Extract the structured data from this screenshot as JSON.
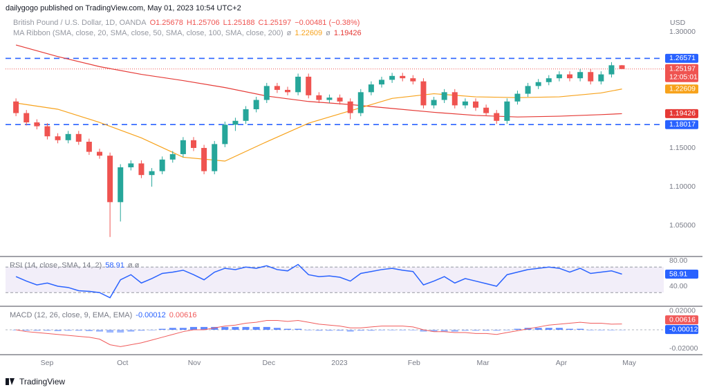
{
  "header": {
    "publisher": "dailygogo published on TradingView.com, May 01, 2023 10:54 UTC+2",
    "currency": "USD",
    "footer": "TradingView"
  },
  "chart_data": [
    {
      "type": "candlestick",
      "title": "British Pound / U.S. Dollar, 1D, OANDA",
      "legend": {
        "open": "O1.25678",
        "high": "H1.25706",
        "low": "L1.25188",
        "close": "C1.25197",
        "change": "−0.00481 (−0.38%)"
      },
      "ribbon": {
        "title": "MA Ribbon (SMA, close, 20, SMA, close, 50, SMA, close, 100, SMA, close, 200)",
        "sep": "ø"
      },
      "countdown": "12:05:01",
      "xlim": [
        -1,
        62
      ],
      "xticks": [
        {
          "value": 2.97,
          "label": "Sep"
        },
        {
          "value": 10.2,
          "label": "Oct"
        },
        {
          "value": 17.07,
          "label": "Nov"
        },
        {
          "value": 24.2,
          "label": "Dec"
        },
        {
          "value": 30.96,
          "label": "2023"
        },
        {
          "value": 38.1,
          "label": "Feb"
        },
        {
          "value": 44.7,
          "label": "Mar"
        },
        {
          "value": 52.2,
          "label": "Apr"
        },
        {
          "value": 58.7,
          "label": "May"
        }
      ],
      "ylim": [
        1.0107,
        1.3232
      ],
      "yticks": [
        {
          "value": 1.3,
          "label": "1.30000"
        },
        {
          "value": 1.15,
          "label": "1.15000"
        },
        {
          "value": 1.1,
          "label": "1.10000"
        },
        {
          "value": 1.05,
          "label": "1.05000"
        }
      ],
      "up_color": "#26a69a",
      "down_color": "#ef5350",
      "open": [
        1.21,
        1.195,
        1.183,
        1.178,
        1.165,
        1.16,
        1.168,
        1.158,
        1.145,
        1.14,
        1.08,
        1.125,
        1.13,
        1.115,
        1.12,
        1.135,
        1.142,
        1.16,
        1.15,
        1.12,
        1.155,
        1.18,
        1.185,
        1.2,
        1.212,
        1.23,
        1.225,
        1.222,
        1.242,
        1.218,
        1.212,
        1.215,
        1.21,
        1.195,
        1.222,
        1.232,
        1.238,
        1.243,
        1.24,
        1.236,
        1.205,
        1.212,
        1.222,
        1.205,
        1.21,
        1.202,
        1.195,
        1.185,
        1.21,
        1.22,
        1.23,
        1.235,
        1.24,
        1.245,
        1.24,
        1.248,
        1.236,
        1.245,
        1.25678
      ],
      "high": [
        1.214,
        1.199,
        1.187,
        1.182,
        1.169,
        1.172,
        1.172,
        1.162,
        1.149,
        1.144,
        1.129,
        1.134,
        1.134,
        1.124,
        1.139,
        1.146,
        1.164,
        1.164,
        1.154,
        1.159,
        1.184,
        1.189,
        1.204,
        1.216,
        1.234,
        1.234,
        1.229,
        1.246,
        1.246,
        1.222,
        1.219,
        1.219,
        1.214,
        1.226,
        1.236,
        1.242,
        1.247,
        1.247,
        1.244,
        1.24,
        1.216,
        1.226,
        1.226,
        1.214,
        1.214,
        1.206,
        1.199,
        1.214,
        1.224,
        1.234,
        1.239,
        1.244,
        1.249,
        1.249,
        1.252,
        1.252,
        1.249,
        1.2608,
        1.25706
      ],
      "low": [
        1.191,
        1.179,
        1.174,
        1.161,
        1.156,
        1.156,
        1.154,
        1.141,
        1.136,
        1.035,
        1.055,
        1.121,
        1.111,
        1.1,
        1.116,
        1.131,
        1.138,
        1.146,
        1.116,
        1.116,
        1.151,
        1.172,
        1.181,
        1.196,
        1.208,
        1.221,
        1.218,
        1.218,
        1.214,
        1.208,
        1.208,
        1.206,
        1.187,
        1.191,
        1.218,
        1.228,
        1.234,
        1.236,
        1.232,
        1.201,
        1.201,
        1.208,
        1.201,
        1.201,
        1.198,
        1.191,
        1.181,
        1.181,
        1.206,
        1.216,
        1.226,
        1.231,
        1.236,
        1.236,
        1.236,
        1.232,
        1.232,
        1.241,
        1.25188
      ],
      "close": [
        1.195,
        1.183,
        1.178,
        1.165,
        1.16,
        1.168,
        1.158,
        1.145,
        1.14,
        1.08,
        1.125,
        1.13,
        1.115,
        1.12,
        1.135,
        1.142,
        1.16,
        1.15,
        1.12,
        1.155,
        1.18,
        1.185,
        1.2,
        1.212,
        1.23,
        1.225,
        1.222,
        1.242,
        1.218,
        1.212,
        1.215,
        1.21,
        1.195,
        1.222,
        1.232,
        1.238,
        1.243,
        1.24,
        1.236,
        1.205,
        1.212,
        1.222,
        1.205,
        1.21,
        1.202,
        1.195,
        1.185,
        1.21,
        1.22,
        1.23,
        1.235,
        1.24,
        1.245,
        1.24,
        1.248,
        1.236,
        1.245,
        1.25678,
        1.25197
      ],
      "series": [
        {
          "name": "SMA 200",
          "color": "#e53935",
          "x": [
            0,
            4,
            8,
            12,
            16,
            20,
            24,
            28,
            32,
            36,
            40,
            44,
            48,
            52,
            56,
            58
          ],
          "values": [
            1.283,
            1.268,
            1.255,
            1.245,
            1.237,
            1.228,
            1.217,
            1.21,
            1.206,
            1.201,
            1.196,
            1.192,
            1.19,
            1.191,
            1.193,
            1.19426
          ]
        },
        {
          "name": "SMA 50",
          "color": "#f7a21b",
          "x": [
            0,
            4,
            8,
            12,
            16,
            20,
            24,
            28,
            32,
            36,
            40,
            44,
            48,
            52,
            56,
            58
          ],
          "values": [
            1.208,
            1.2,
            1.183,
            1.163,
            1.138,
            1.133,
            1.158,
            1.182,
            1.198,
            1.214,
            1.22,
            1.216,
            1.215,
            1.216,
            1.221,
            1.22609
          ]
        }
      ],
      "levels": [
        1.26571,
        1.18017
      ],
      "level_color": "#2962ff"
    },
    {
      "type": "line",
      "title": "RSI (14, close, SMA, 14, 2)",
      "suffix": "ø ø",
      "color": "#2962ff",
      "ylim": [
        9.7,
        85.4
      ],
      "yticks": [
        {
          "value": 80,
          "label": "80.00"
        },
        {
          "value": 40,
          "label": "40.00"
        }
      ],
      "bands": [
        70,
        30
      ],
      "values": [
        55,
        48,
        42,
        45,
        40,
        38,
        33,
        32,
        30,
        22,
        50,
        58,
        45,
        52,
        60,
        62,
        65,
        58,
        50,
        62,
        68,
        66,
        70,
        68,
        72,
        66,
        64,
        74,
        58,
        55,
        56,
        54,
        48,
        60,
        63,
        66,
        68,
        65,
        63,
        42,
        48,
        55,
        45,
        52,
        48,
        44,
        40,
        58,
        62,
        66,
        68,
        70,
        68,
        62,
        68,
        60,
        62,
        64,
        58.91
      ]
    },
    {
      "type": "macd",
      "title": "MACD (12, 26, close, 9, EMA, EMA)",
      "ylim": [
        -0.0259,
        0.0244
      ],
      "yticks": [
        {
          "value": 0.02,
          "label": "0.02000"
        },
        {
          "value": -0.02,
          "label": "-0.02000"
        }
      ],
      "series": [
        {
          "name": "Histogram",
          "color": "#2962ff",
          "values": [
            0,
            -0.001,
            -0.001,
            -0.001,
            -0.0015,
            -0.001,
            -0.001,
            -0.0015,
            -0.002,
            -0.003,
            -0.003,
            -0.002,
            -0.001,
            0,
            0.001,
            0.002,
            0.002,
            0.003,
            0.003,
            0.003,
            0.003,
            0.003,
            0.003,
            0.003,
            0.003,
            0.002,
            0.001,
            0.001,
            0,
            -0.001,
            -0.001,
            -0.001,
            -0.002,
            -0.001,
            -0.001,
            0,
            0,
            0,
            0,
            -0.002,
            -0.002,
            -0.002,
            -0.002,
            -0.001,
            -0.001,
            -0.001,
            -0.001,
            0,
            0.001,
            0.002,
            0.002,
            0.002,
            0.002,
            0.001,
            0.001,
            0,
            0,
            0,
            -0.00012
          ]
        },
        {
          "name": "MACD",
          "color": "#f05a5a",
          "values": [
            0,
            -0.002,
            -0.003,
            -0.004,
            -0.005,
            -0.006,
            -0.007,
            -0.008,
            -0.01,
            -0.016,
            -0.018,
            -0.016,
            -0.014,
            -0.011,
            -0.008,
            -0.005,
            -0.002,
            0,
            0,
            0.002,
            0.004,
            0.005,
            0.007,
            0.008,
            0.01,
            0.01,
            0.009,
            0.01,
            0.008,
            0.006,
            0.005,
            0.004,
            0.002,
            0.002,
            0.003,
            0.004,
            0.004,
            0.004,
            0.003,
            0,
            -0.002,
            -0.002,
            -0.003,
            -0.003,
            -0.004,
            -0.004,
            -0.005,
            -0.003,
            -0.001,
            0.001,
            0.003,
            0.005,
            0.006,
            0.007,
            0.008,
            0.007,
            0.007,
            0.006,
            0.00616
          ]
        }
      ]
    }
  ]
}
